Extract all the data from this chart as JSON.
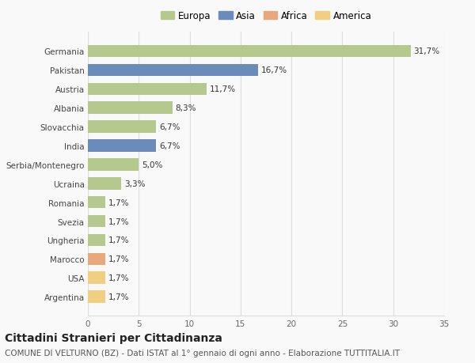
{
  "countries": [
    "Germania",
    "Pakistan",
    "Austria",
    "Albania",
    "Slovacchia",
    "India",
    "Serbia/Montenegro",
    "Ucraina",
    "Romania",
    "Svezia",
    "Ungheria",
    "Marocco",
    "USA",
    "Argentina"
  ],
  "values": [
    31.7,
    16.7,
    11.7,
    8.3,
    6.7,
    6.7,
    5.0,
    3.3,
    1.7,
    1.7,
    1.7,
    1.7,
    1.7,
    1.7
  ],
  "bar_colors": [
    "#b5c98e",
    "#6b8cba",
    "#b5c98e",
    "#b5c98e",
    "#b5c98e",
    "#6b8cba",
    "#b5c98e",
    "#b5c98e",
    "#b5c98e",
    "#b5c98e",
    "#b5c98e",
    "#e8a87c",
    "#f0d080",
    "#f0d080"
  ],
  "labels": [
    "31,7%",
    "16,7%",
    "11,7%",
    "8,3%",
    "6,7%",
    "6,7%",
    "5,0%",
    "3,3%",
    "1,7%",
    "1,7%",
    "1,7%",
    "1,7%",
    "1,7%",
    "1,7%"
  ],
  "legend_labels": [
    "Europa",
    "Asia",
    "Africa",
    "America"
  ],
  "legend_colors": [
    "#b5c98e",
    "#6b8cba",
    "#e8a87c",
    "#f0d080"
  ],
  "title": "Cittadini Stranieri per Cittadinanza",
  "subtitle": "COMUNE DI VELTURNO (BZ) - Dati ISTAT al 1° gennaio di ogni anno - Elaborazione TUTTITALIA.IT",
  "xlim": [
    0,
    35
  ],
  "xticks": [
    0,
    5,
    10,
    15,
    20,
    25,
    30,
    35
  ],
  "background_color": "#f9f9f9",
  "grid_color": "#dddddd",
  "bar_height": 0.65,
  "title_fontsize": 10,
  "subtitle_fontsize": 7.5,
  "label_fontsize": 7.5,
  "tick_fontsize": 7.5,
  "legend_fontsize": 8.5
}
